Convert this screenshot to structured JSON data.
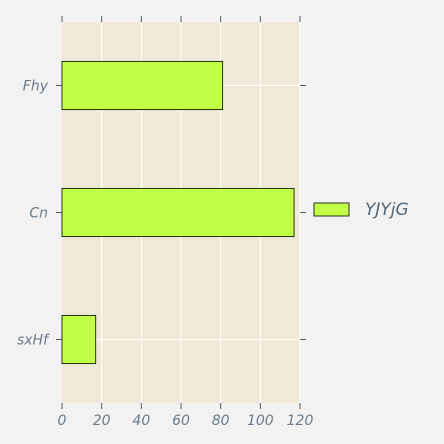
{
  "chart_data": {
    "type": "bar",
    "orientation": "horizontal",
    "categories": [
      "Fhy",
      "Cn",
      "sxHf"
    ],
    "series": [
      {
        "name": "YJYjG",
        "values": [
          81,
          117,
          17
        ],
        "color": "#c2ff47"
      }
    ],
    "title": "",
    "xlabel": "",
    "ylabel": "",
    "xlim": [
      0,
      120
    ],
    "xticks": [
      0,
      20,
      40,
      60,
      80,
      100,
      120
    ],
    "grid": true,
    "legend": "right",
    "plot_background": "#f0e9d7",
    "page_background": "#f2f2f2"
  }
}
